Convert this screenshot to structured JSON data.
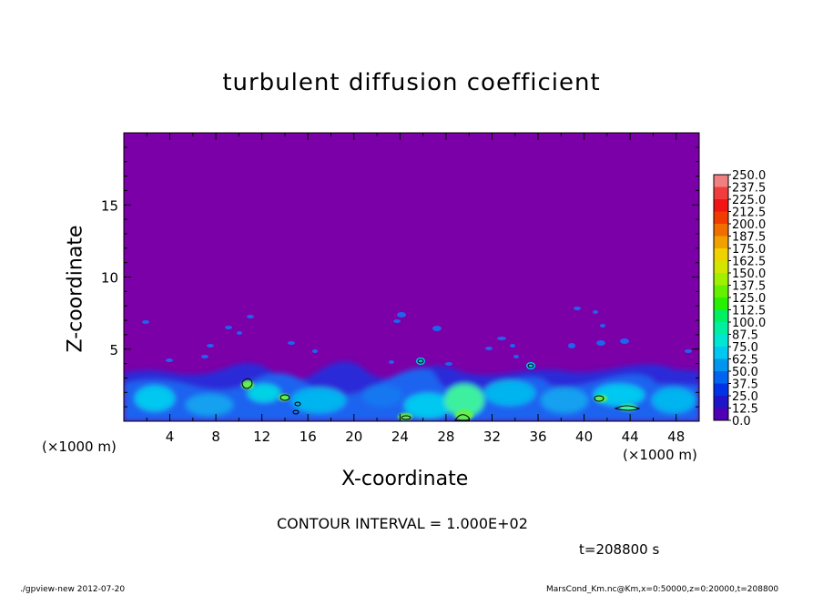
{
  "header": {
    "title": "turbulent diffusion coefficient"
  },
  "axes": {
    "xlabel": "X-coordinate",
    "ylabel": "Z-coordinate",
    "x_unit_left": "(×1000 m)",
    "x_unit_right": "(×1000 m)"
  },
  "notes": {
    "contour_interval": "CONTOUR INTERVAL = 1.000E+02",
    "time": "t=208800 s"
  },
  "footer": {
    "left": "./gpview-new  2012-07-20",
    "right": "MarsCond_Km.nc@Km,x=0:50000,z=0:20000,t=208800"
  },
  "colors": {
    "background_field": "#7b00a8",
    "contour_line": "#000000"
  },
  "chart_data": {
    "type": "heatmap",
    "title": "turbulent diffusion coefficient",
    "xlabel": "X-coordinate",
    "ylabel": "Z-coordinate",
    "xlim": [
      0,
      50
    ],
    "ylim": [
      0,
      20
    ],
    "x_ticks": [
      "4",
      "8",
      "12",
      "16",
      "20",
      "24",
      "28",
      "32",
      "36",
      "40",
      "44",
      "48"
    ],
    "x_tick_values": [
      4,
      8,
      12,
      16,
      20,
      24,
      28,
      32,
      36,
      40,
      44,
      48
    ],
    "y_ticks": [
      "5",
      "10",
      "15"
    ],
    "y_tick_values": [
      5,
      10,
      15
    ],
    "colorbar": {
      "levels": [
        "250.0",
        "237.5",
        "225.0",
        "212.5",
        "200.0",
        "187.5",
        "175.0",
        "162.5",
        "150.0",
        "137.5",
        "125.0",
        "112.5",
        "100.0",
        "87.5",
        "75.0",
        "62.5",
        "50.0",
        "37.5",
        "25.0",
        "12.5",
        "0.0"
      ],
      "colors": [
        "#f08080",
        "#f03c3c",
        "#f01414",
        "#f03c00",
        "#f06e00",
        "#f0a000",
        "#f0d200",
        "#d2e600",
        "#a0f000",
        "#64f000",
        "#28f000",
        "#00f064",
        "#00f0a0",
        "#00e6d2",
        "#00c8f0",
        "#0096f0",
        "#0064f0",
        "#0032e6",
        "#1e14c8",
        "#5000b4"
      ]
    },
    "field_description_values": {
      "background_value_range": [
        0,
        12.5
      ],
      "boundary_layer_top_km": 3.5,
      "max_value_approx": 112.5
    }
  }
}
